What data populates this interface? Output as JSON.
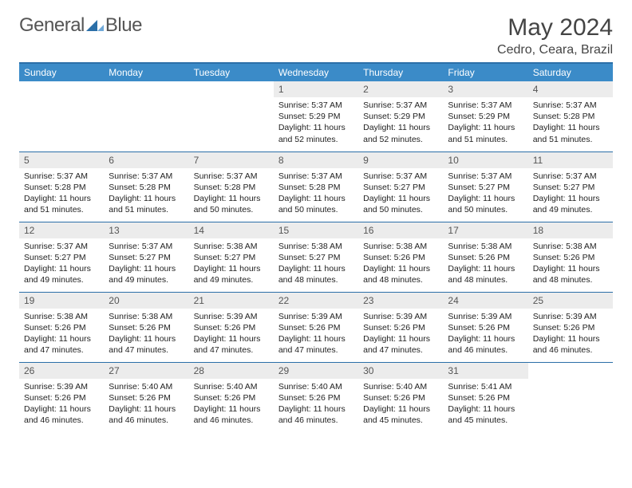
{
  "logo": {
    "text1": "General",
    "text2": "Blue",
    "text_color": "#555555",
    "mark_color": "#2b6fa8"
  },
  "title": "May 2024",
  "location": "Cedro, Ceara, Brazil",
  "colors": {
    "header_bg": "#3b8bc8",
    "header_text": "#ffffff",
    "border": "#2b6fa8",
    "daynum_bg": "#ececec",
    "daynum_text": "#555555",
    "body_text": "#222222",
    "page_bg": "#ffffff"
  },
  "typography": {
    "title_fontsize": 30,
    "location_fontsize": 16,
    "header_fontsize": 12,
    "daynum_fontsize": 12,
    "body_fontsize": 10.5
  },
  "day_labels": [
    "Sunday",
    "Monday",
    "Tuesday",
    "Wednesday",
    "Thursday",
    "Friday",
    "Saturday"
  ],
  "weeks": [
    [
      {
        "empty": true
      },
      {
        "empty": true
      },
      {
        "empty": true
      },
      {
        "day": "1",
        "sunrise": "Sunrise: 5:37 AM",
        "sunset": "Sunset: 5:29 PM",
        "daylight": "Daylight: 11 hours and 52 minutes."
      },
      {
        "day": "2",
        "sunrise": "Sunrise: 5:37 AM",
        "sunset": "Sunset: 5:29 PM",
        "daylight": "Daylight: 11 hours and 52 minutes."
      },
      {
        "day": "3",
        "sunrise": "Sunrise: 5:37 AM",
        "sunset": "Sunset: 5:29 PM",
        "daylight": "Daylight: 11 hours and 51 minutes."
      },
      {
        "day": "4",
        "sunrise": "Sunrise: 5:37 AM",
        "sunset": "Sunset: 5:28 PM",
        "daylight": "Daylight: 11 hours and 51 minutes."
      }
    ],
    [
      {
        "day": "5",
        "sunrise": "Sunrise: 5:37 AM",
        "sunset": "Sunset: 5:28 PM",
        "daylight": "Daylight: 11 hours and 51 minutes."
      },
      {
        "day": "6",
        "sunrise": "Sunrise: 5:37 AM",
        "sunset": "Sunset: 5:28 PM",
        "daylight": "Daylight: 11 hours and 51 minutes."
      },
      {
        "day": "7",
        "sunrise": "Sunrise: 5:37 AM",
        "sunset": "Sunset: 5:28 PM",
        "daylight": "Daylight: 11 hours and 50 minutes."
      },
      {
        "day": "8",
        "sunrise": "Sunrise: 5:37 AM",
        "sunset": "Sunset: 5:28 PM",
        "daylight": "Daylight: 11 hours and 50 minutes."
      },
      {
        "day": "9",
        "sunrise": "Sunrise: 5:37 AM",
        "sunset": "Sunset: 5:27 PM",
        "daylight": "Daylight: 11 hours and 50 minutes."
      },
      {
        "day": "10",
        "sunrise": "Sunrise: 5:37 AM",
        "sunset": "Sunset: 5:27 PM",
        "daylight": "Daylight: 11 hours and 50 minutes."
      },
      {
        "day": "11",
        "sunrise": "Sunrise: 5:37 AM",
        "sunset": "Sunset: 5:27 PM",
        "daylight": "Daylight: 11 hours and 49 minutes."
      }
    ],
    [
      {
        "day": "12",
        "sunrise": "Sunrise: 5:37 AM",
        "sunset": "Sunset: 5:27 PM",
        "daylight": "Daylight: 11 hours and 49 minutes."
      },
      {
        "day": "13",
        "sunrise": "Sunrise: 5:37 AM",
        "sunset": "Sunset: 5:27 PM",
        "daylight": "Daylight: 11 hours and 49 minutes."
      },
      {
        "day": "14",
        "sunrise": "Sunrise: 5:38 AM",
        "sunset": "Sunset: 5:27 PM",
        "daylight": "Daylight: 11 hours and 49 minutes."
      },
      {
        "day": "15",
        "sunrise": "Sunrise: 5:38 AM",
        "sunset": "Sunset: 5:27 PM",
        "daylight": "Daylight: 11 hours and 48 minutes."
      },
      {
        "day": "16",
        "sunrise": "Sunrise: 5:38 AM",
        "sunset": "Sunset: 5:26 PM",
        "daylight": "Daylight: 11 hours and 48 minutes."
      },
      {
        "day": "17",
        "sunrise": "Sunrise: 5:38 AM",
        "sunset": "Sunset: 5:26 PM",
        "daylight": "Daylight: 11 hours and 48 minutes."
      },
      {
        "day": "18",
        "sunrise": "Sunrise: 5:38 AM",
        "sunset": "Sunset: 5:26 PM",
        "daylight": "Daylight: 11 hours and 48 minutes."
      }
    ],
    [
      {
        "day": "19",
        "sunrise": "Sunrise: 5:38 AM",
        "sunset": "Sunset: 5:26 PM",
        "daylight": "Daylight: 11 hours and 47 minutes."
      },
      {
        "day": "20",
        "sunrise": "Sunrise: 5:38 AM",
        "sunset": "Sunset: 5:26 PM",
        "daylight": "Daylight: 11 hours and 47 minutes."
      },
      {
        "day": "21",
        "sunrise": "Sunrise: 5:39 AM",
        "sunset": "Sunset: 5:26 PM",
        "daylight": "Daylight: 11 hours and 47 minutes."
      },
      {
        "day": "22",
        "sunrise": "Sunrise: 5:39 AM",
        "sunset": "Sunset: 5:26 PM",
        "daylight": "Daylight: 11 hours and 47 minutes."
      },
      {
        "day": "23",
        "sunrise": "Sunrise: 5:39 AM",
        "sunset": "Sunset: 5:26 PM",
        "daylight": "Daylight: 11 hours and 47 minutes."
      },
      {
        "day": "24",
        "sunrise": "Sunrise: 5:39 AM",
        "sunset": "Sunset: 5:26 PM",
        "daylight": "Daylight: 11 hours and 46 minutes."
      },
      {
        "day": "25",
        "sunrise": "Sunrise: 5:39 AM",
        "sunset": "Sunset: 5:26 PM",
        "daylight": "Daylight: 11 hours and 46 minutes."
      }
    ],
    [
      {
        "day": "26",
        "sunrise": "Sunrise: 5:39 AM",
        "sunset": "Sunset: 5:26 PM",
        "daylight": "Daylight: 11 hours and 46 minutes."
      },
      {
        "day": "27",
        "sunrise": "Sunrise: 5:40 AM",
        "sunset": "Sunset: 5:26 PM",
        "daylight": "Daylight: 11 hours and 46 minutes."
      },
      {
        "day": "28",
        "sunrise": "Sunrise: 5:40 AM",
        "sunset": "Sunset: 5:26 PM",
        "daylight": "Daylight: 11 hours and 46 minutes."
      },
      {
        "day": "29",
        "sunrise": "Sunrise: 5:40 AM",
        "sunset": "Sunset: 5:26 PM",
        "daylight": "Daylight: 11 hours and 46 minutes."
      },
      {
        "day": "30",
        "sunrise": "Sunrise: 5:40 AM",
        "sunset": "Sunset: 5:26 PM",
        "daylight": "Daylight: 11 hours and 45 minutes."
      },
      {
        "day": "31",
        "sunrise": "Sunrise: 5:41 AM",
        "sunset": "Sunset: 5:26 PM",
        "daylight": "Daylight: 11 hours and 45 minutes."
      },
      {
        "empty": true
      }
    ]
  ]
}
